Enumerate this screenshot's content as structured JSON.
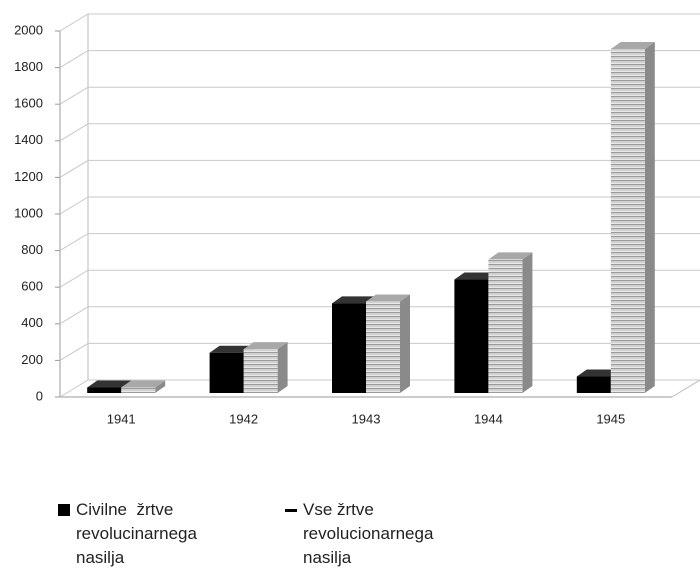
{
  "chart_data": {
    "type": "bar3d",
    "categories": [
      "1941",
      "1942",
      "1943",
      "1944",
      "1945"
    ],
    "series": [
      {
        "name": "Civilne  žrtve revolucinarnega nasilja",
        "color": "#000000",
        "values": [
          30,
          220,
          490,
          620,
          90
        ]
      },
      {
        "name": "Vse žrtve revolucionarnega nasilja",
        "color": "#d0d0d0",
        "values": [
          30,
          240,
          500,
          730,
          1880
        ]
      }
    ],
    "ylim": [
      0,
      2000
    ],
    "yticks": [
      0,
      200,
      400,
      600,
      800,
      1000,
      1200,
      1400,
      1600,
      1800,
      2000
    ],
    "grid": true
  }
}
